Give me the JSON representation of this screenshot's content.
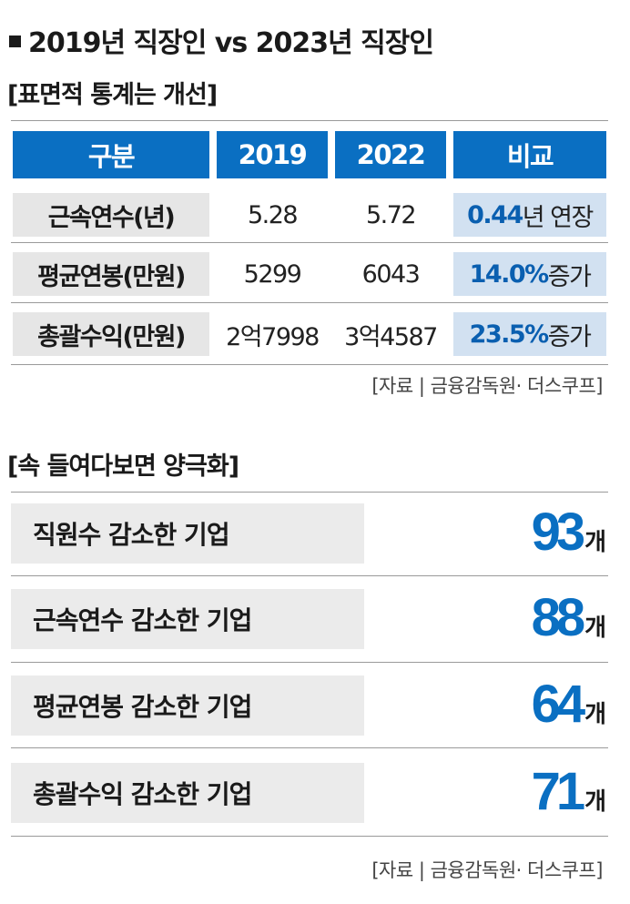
{
  "title": "2019년 직장인 vs 2023년 직장인",
  "section1": {
    "heading": "[표면적 통계는 개선]",
    "headers": [
      "구분",
      "2019",
      "2022",
      "비교"
    ],
    "rows": [
      {
        "label": "근속연수(년)",
        "v2019": "5.28",
        "v2022": "5.72",
        "cmp_num": "0.44",
        "cmp_text": "년 연장"
      },
      {
        "label": "평균연봉(만원)",
        "v2019": "5299",
        "v2022": "6043",
        "cmp_num": "14.0%",
        "cmp_text": " 증가"
      },
      {
        "label": "총괄수익(만원)",
        "v2019": "2억7998",
        "v2022": "3억4587",
        "cmp_num": "23.5%",
        "cmp_text": " 증가"
      }
    ],
    "source": "[자료 | 금융감독원· 더스쿠프]"
  },
  "section2": {
    "heading": "[속 들여다보면 양극화]",
    "items": [
      {
        "label": "직원수 감소한 기업",
        "count": "93",
        "unit": "개"
      },
      {
        "label": "근속연수 감소한 기업",
        "count": "88",
        "unit": "개"
      },
      {
        "label": "평균연봉 감소한 기업",
        "count": "64",
        "unit": "개"
      },
      {
        "label": "총괄수익 감소한 기업",
        "count": "71",
        "unit": "개"
      }
    ],
    "source": "[자료 | 금융감독원· 더스쿠프]"
  },
  "colors": {
    "accent": "#0a6fc2",
    "compare_bg": "#d2e1f1",
    "label_bg": "#e6e6e6"
  },
  "chart_data": {
    "type": "table",
    "title": "2019년 직장인 vs 2023년 직장인",
    "tables": [
      {
        "heading": "[표면적 통계는 개선]",
        "columns": [
          "구분",
          "2019",
          "2022",
          "비교"
        ],
        "rows": [
          [
            "근속연수(년)",
            "5.28",
            "5.72",
            "0.44년 연장"
          ],
          [
            "평균연봉(만원)",
            "5299",
            "6043",
            "14.0% 증가"
          ],
          [
            "총괄수익(만원)",
            "2억7998",
            "3억4587",
            "23.5% 증가"
          ]
        ]
      },
      {
        "heading": "[속 들여다보면 양극화]",
        "columns": [
          "",
          ""
        ],
        "rows": [
          [
            "직원수 감소한 기업",
            "93개"
          ],
          [
            "근속연수 감소한 기업",
            "88개"
          ],
          [
            "평균연봉 감소한 기업",
            "64개"
          ],
          [
            "총괄수익 감소한 기업",
            "71개"
          ]
        ]
      }
    ]
  }
}
